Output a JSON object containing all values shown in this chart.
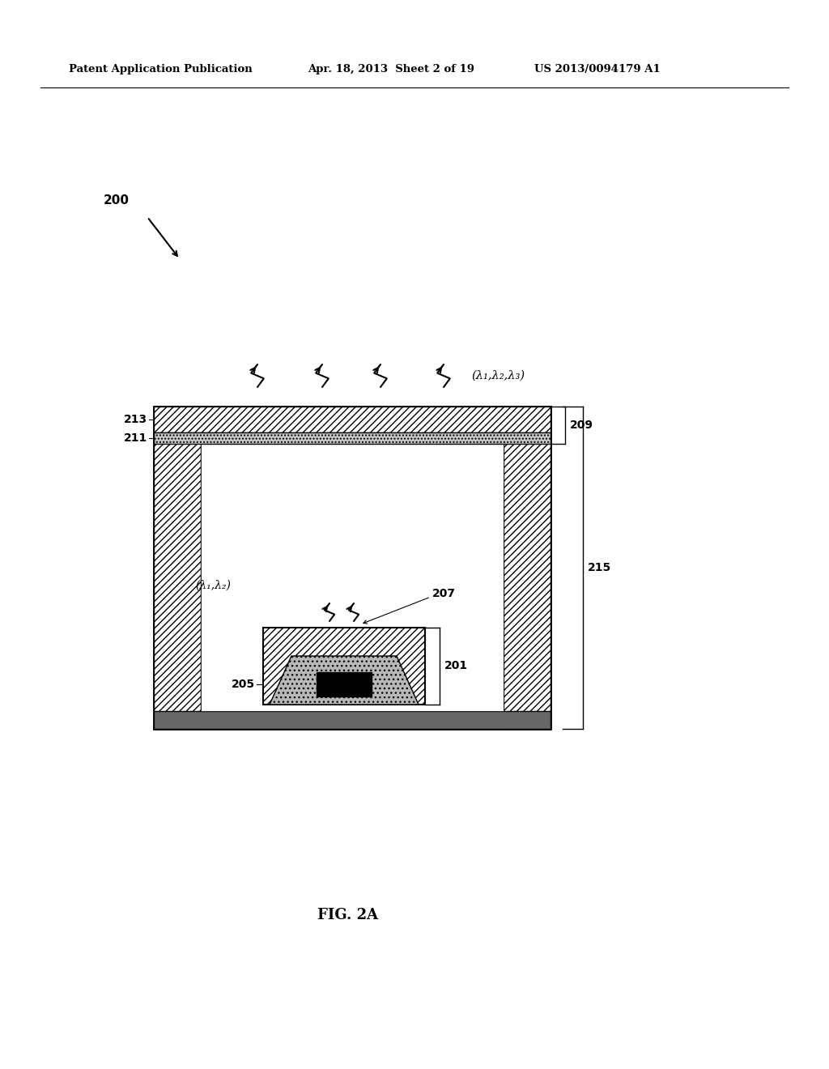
{
  "fig_width": 10.24,
  "fig_height": 13.2,
  "bg_color": "#ffffff",
  "header_left": "Patent Application Publication",
  "header_mid": "Apr. 18, 2013  Sheet 2 of 19",
  "header_right": "US 2013/0094179 A1",
  "fig_label": "FIG. 2A",
  "label_200": "200",
  "label_213": "213",
  "label_211": "211",
  "label_209": "209",
  "label_215": "215",
  "label_207": "207",
  "label_205": "205",
  "label_201": "201",
  "lambda_top": "(λ₁,λ₂,λ₃)",
  "lambda_inner": "(λ₁,λ₂)"
}
